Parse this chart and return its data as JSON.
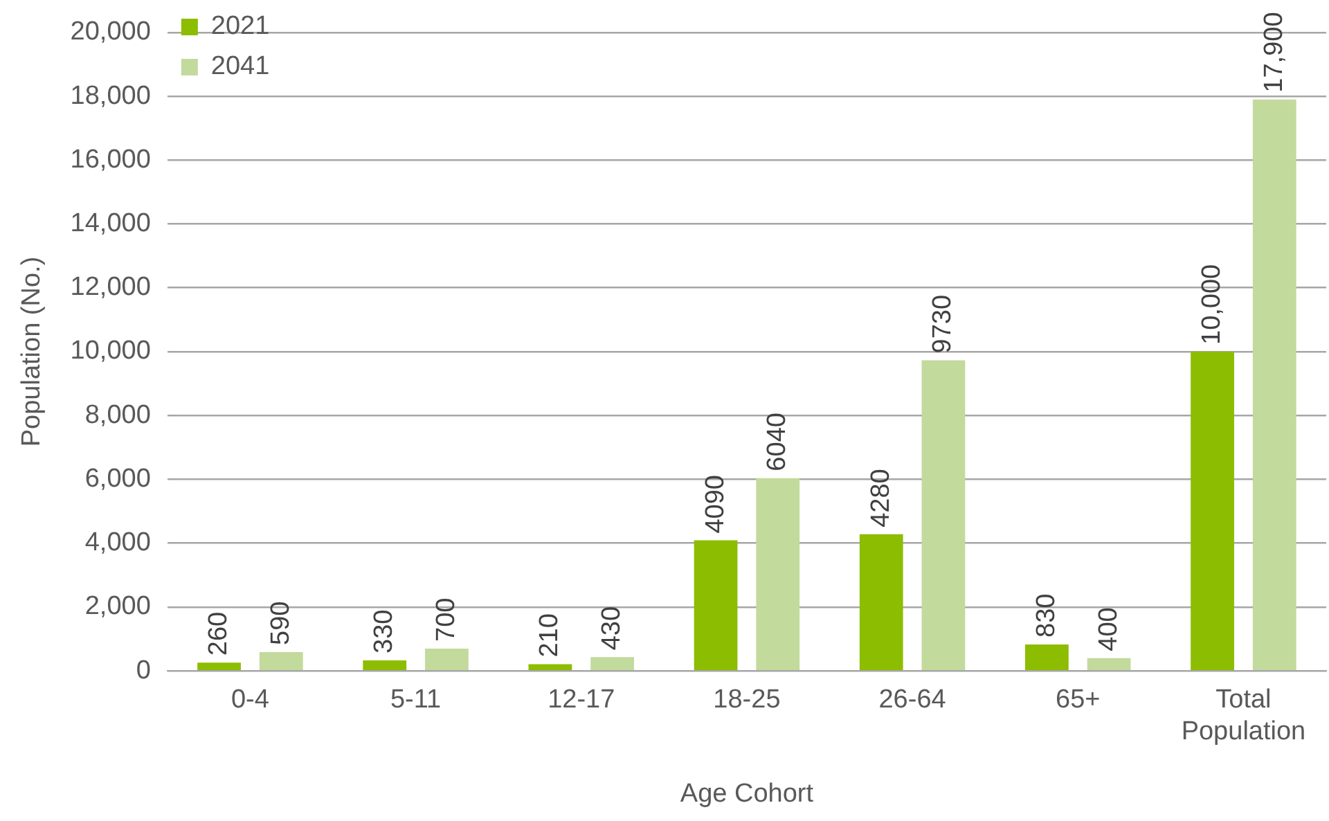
{
  "chart_data": {
    "type": "bar",
    "xlabel": "Age Cohort",
    "ylabel": "Population (No.)",
    "categories": [
      "0-4",
      "5-11",
      "12-17",
      "18-25",
      "26-64",
      "65+",
      "Total Population"
    ],
    "series": [
      {
        "name": "2021",
        "color": "#8cbd00",
        "values": [
          260,
          330,
          210,
          4090,
          4280,
          830,
          10000
        ],
        "value_labels": [
          "260",
          "330",
          "210",
          "4090",
          "4280",
          "830",
          "10,000"
        ]
      },
      {
        "name": "2041",
        "color": "#c2da9c",
        "values": [
          590,
          700,
          430,
          6040,
          9730,
          400,
          17900
        ],
        "value_labels": [
          "590",
          "700",
          "430",
          "6040",
          "9730",
          "400",
          "17,900"
        ]
      }
    ],
    "ylim": [
      0,
      20000
    ],
    "yticks": [
      {
        "value": 0,
        "label": "0"
      },
      {
        "value": 2000,
        "label": "2,000"
      },
      {
        "value": 4000,
        "label": "4,000"
      },
      {
        "value": 6000,
        "label": "6,000"
      },
      {
        "value": 8000,
        "label": "8,000"
      },
      {
        "value": 10000,
        "label": "10,000"
      },
      {
        "value": 12000,
        "label": "12,000"
      },
      {
        "value": 14000,
        "label": "14,000"
      },
      {
        "value": 16000,
        "label": "16,000"
      },
      {
        "value": 18000,
        "label": "18,000"
      },
      {
        "value": 20000,
        "label": "20,000"
      }
    ],
    "grid": "y",
    "legend": "top left"
  }
}
